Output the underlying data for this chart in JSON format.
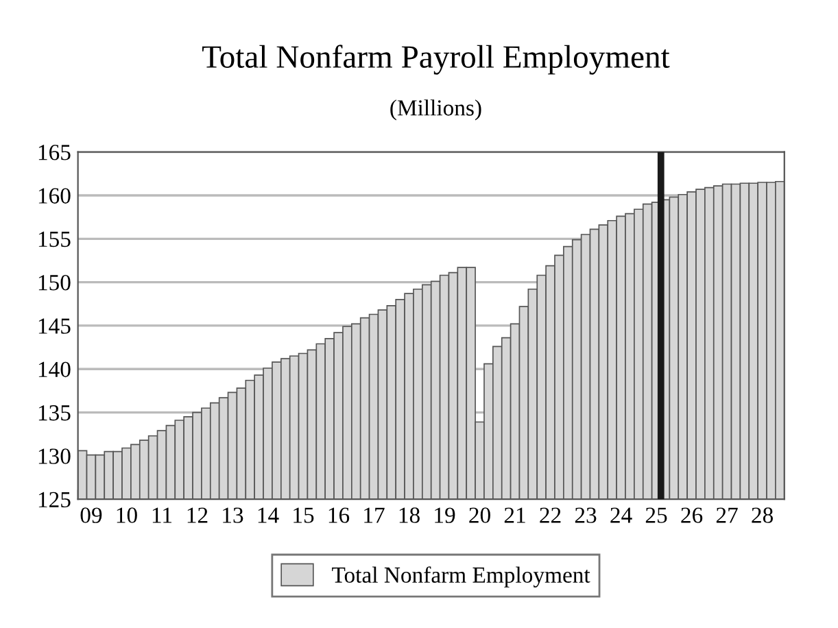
{
  "chart_data": {
    "type": "bar",
    "title": "Total Nonfarm Payroll Employment",
    "subtitle": "(Millions)",
    "categories": [
      null,
      "09",
      null,
      null,
      null,
      "10",
      null,
      null,
      null,
      "11",
      null,
      null,
      null,
      "12",
      null,
      null,
      null,
      "13",
      null,
      null,
      null,
      "14",
      null,
      null,
      null,
      "15",
      null,
      null,
      null,
      "16",
      null,
      null,
      null,
      "17",
      null,
      null,
      null,
      "18",
      null,
      null,
      null,
      "19",
      null,
      null,
      null,
      "20",
      null,
      null,
      null,
      "21",
      null,
      null,
      null,
      "22",
      null,
      null,
      null,
      "23",
      null,
      null,
      null,
      "24",
      null,
      null,
      null,
      "25",
      null,
      null,
      null,
      "26",
      null,
      null,
      null,
      "27",
      null,
      null,
      null,
      "28",
      null,
      null
    ],
    "series": [
      {
        "name": "Total Nonfarm Employment",
        "color": "#d6d6d6",
        "values": [
          130.6,
          130.1,
          130.1,
          130.5,
          130.5,
          130.9,
          131.3,
          131.8,
          132.3,
          132.9,
          133.5,
          134.1,
          134.5,
          135.0,
          135.5,
          136.1,
          136.7,
          137.3,
          137.8,
          138.7,
          139.3,
          140.1,
          140.8,
          141.2,
          141.5,
          141.8,
          142.2,
          142.9,
          143.5,
          144.2,
          144.9,
          145.2,
          145.9,
          146.3,
          146.8,
          147.3,
          148.0,
          148.7,
          149.2,
          149.7,
          150.1,
          150.8,
          151.1,
          151.7,
          151.7,
          133.9,
          140.6,
          142.6,
          143.6,
          145.2,
          147.2,
          149.2,
          150.8,
          151.9,
          153.1,
          154.1,
          154.9,
          155.5,
          156.1,
          156.6,
          157.1,
          157.6,
          157.9,
          158.4,
          159.0,
          159.2,
          159.5,
          159.8,
          160.1,
          160.4,
          160.7,
          160.9,
          161.1,
          161.3,
          161.3,
          161.4,
          161.4,
          161.5,
          161.5,
          161.6
        ]
      }
    ],
    "ylim": [
      125,
      165
    ],
    "yticks": [
      125,
      130,
      135,
      140,
      145,
      150,
      155,
      160,
      165
    ],
    "grid": "y",
    "legend": "bottom"
  }
}
